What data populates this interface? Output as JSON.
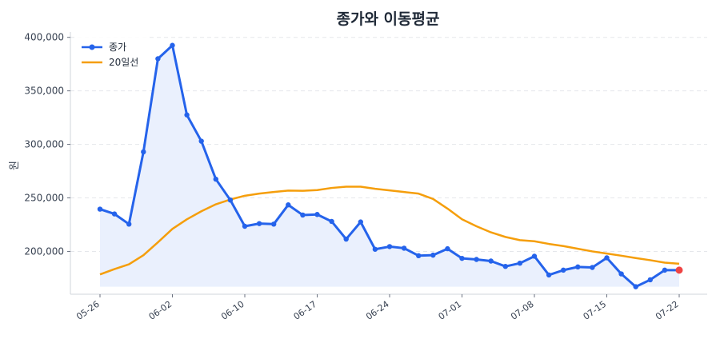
{
  "chart_data": {
    "type": "line",
    "title": "종가와 이동평균",
    "xlabel": "",
    "ylabel": "원",
    "ylim": [
      160000,
      405000
    ],
    "yticks": [
      200000,
      250000,
      300000,
      350000,
      400000
    ],
    "ytick_labels": [
      "200,000",
      "250,000",
      "300,000",
      "350,000",
      "400,000"
    ],
    "xticks": [
      "05-26",
      "06-02",
      "06-10",
      "06-17",
      "06-24",
      "07-01",
      "07-08",
      "07-15",
      "07-22"
    ],
    "xtick_positions": [
      "05-26",
      "06-02",
      "06-10",
      "06-17",
      "06-24",
      "07-01",
      "07-08",
      "07-15",
      "07-22"
    ],
    "x": [
      "05-26",
      "05-27",
      "05-28",
      "05-29",
      "05-30",
      "06-02",
      "06-03",
      "06-04",
      "06-05",
      "06-09",
      "06-10",
      "06-11",
      "06-12",
      "06-13",
      "06-16",
      "06-17",
      "06-18",
      "06-19",
      "06-20",
      "06-23",
      "06-24",
      "06-25",
      "06-26",
      "06-27",
      "06-30",
      "07-01",
      "07-02",
      "07-03",
      "07-04",
      "07-07",
      "07-08",
      "07-09",
      "07-10",
      "07-11",
      "07-14",
      "07-15",
      "07-16",
      "07-17",
      "07-18",
      "07-21",
      "07-22"
    ],
    "series": [
      {
        "name": "종가",
        "color": "#2563eb",
        "values": [
          239500,
          235000,
          225500,
          293000,
          380000,
          392500,
          327500,
          303000,
          267500,
          248000,
          223500,
          226000,
          225500,
          243500,
          234000,
          234500,
          228000,
          211500,
          227500,
          202000,
          204500,
          203000,
          196000,
          196500,
          202500,
          193500,
          192500,
          191000,
          186000,
          189000,
          195500,
          178000,
          182500,
          185500,
          185000,
          194000,
          179000,
          167000,
          173500,
          182500,
          182500
        ],
        "fill": "#eaf0fd",
        "highlight_last": "#ef4444"
      },
      {
        "name": "20일선",
        "color": "#f59e0b",
        "values": [
          178500,
          183500,
          188000,
          196500,
          208500,
          221000,
          230000,
          237500,
          244000,
          248500,
          252000,
          254000,
          255500,
          256800,
          256600,
          257300,
          259300,
          260500,
          260500,
          258500,
          257000,
          255500,
          254000,
          249000,
          240000,
          230000,
          223500,
          217800,
          213500,
          210500,
          209500,
          207000,
          205000,
          202500,
          200000,
          198000,
          196000,
          193800,
          191800,
          189500,
          188500
        ]
      }
    ],
    "legend_position": "top-left",
    "grid": true
  }
}
